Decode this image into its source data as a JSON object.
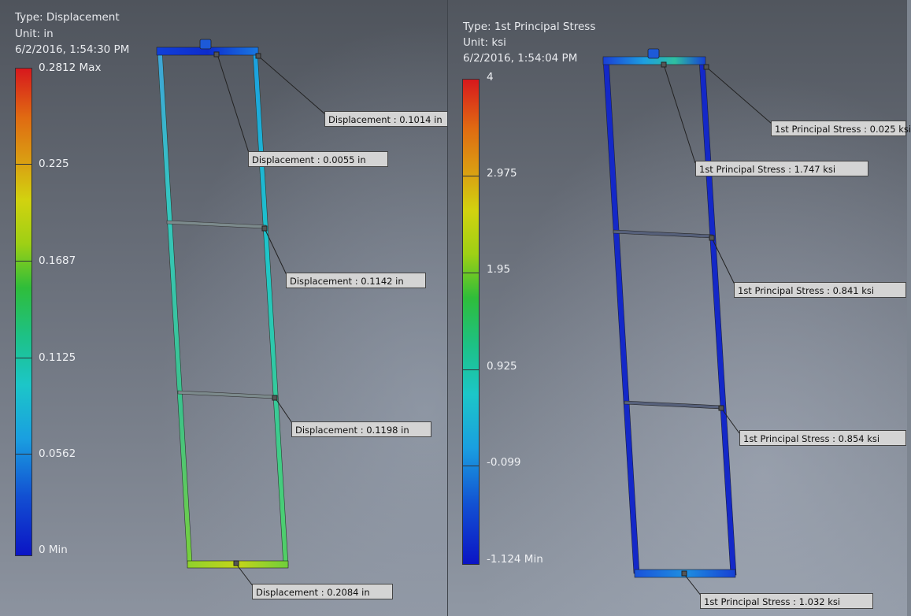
{
  "left_panel": {
    "type_line": "Type: Displacement",
    "unit_line": "Unit: in",
    "timestamp": "6/2/2016, 1:54:30 PM",
    "legend_labels": [
      "0.2812 Max",
      "0.225",
      "0.1687",
      "0.1125",
      "0.0562",
      "0 Min"
    ],
    "callouts": [
      "Displacement : 0.1014 in",
      "Displacement : 0.0055 in",
      "Displacement : 0.1142 in",
      "Displacement : 0.1198 in",
      "Displacement : 0.2084 in"
    ]
  },
  "right_panel": {
    "type_line": "Type: 1st Principal Stress",
    "unit_line": "Unit: ksi",
    "timestamp": "6/2/2016, 1:54:04 PM",
    "legend_labels": [
      "4",
      "2.975",
      "1.95",
      "0.925",
      "-0.099",
      "-1.124 Min"
    ],
    "callouts": [
      "1st Principal Stress : 0.025 ksi",
      "1st Principal Stress : 1.747 ksi",
      "1st Principal Stress : 0.841 ksi",
      "1st Principal Stress : 0.854 ksi",
      "1st Principal Stress : 1.032 ksi"
    ]
  },
  "colors": {
    "scale_max": "#d7181d",
    "scale_min": "#0b14c5",
    "callout_bg": "#d4d4d4"
  }
}
